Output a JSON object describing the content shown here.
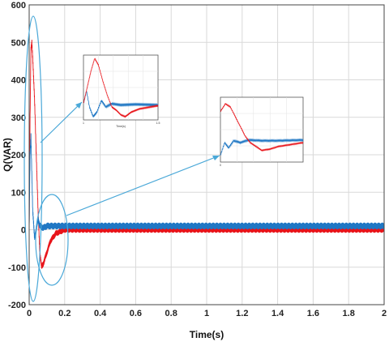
{
  "chart_data": {
    "type": "line",
    "title": "",
    "xlabel": "Time(s)",
    "ylabel": "Q(VAR)",
    "xlim": [
      0,
      2
    ],
    "ylim": [
      -200,
      600
    ],
    "x_ticks": [
      "0",
      "0.2",
      "0.4",
      "0.6",
      "0.8",
      "1",
      "1.2",
      "1.4",
      "1.6",
      "1.8",
      "2"
    ],
    "y_ticks": [
      "-200",
      "-100",
      "0",
      "100",
      "200",
      "300",
      "400",
      "500",
      "600"
    ],
    "grid": true,
    "legend": "none",
    "series": [
      {
        "color": "#e8141a",
        "x": [
          0,
          0.005,
          0.01,
          0.015,
          0.02,
          0.03,
          0.04,
          0.05,
          0.06,
          0.07,
          0.08,
          0.1,
          0.12,
          0.15,
          0.2,
          0.3,
          0.5,
          1.0,
          1.5,
          2.0
        ],
        "y": [
          0,
          300,
          480,
          500,
          460,
          350,
          200,
          50,
          -60,
          -100,
          -90,
          -60,
          -30,
          -10,
          0,
          0,
          0,
          0,
          0,
          0
        ],
        "ripple": 8
      },
      {
        "color": "#1f77c4",
        "x": [
          0,
          0.005,
          0.01,
          0.015,
          0.02,
          0.03,
          0.04,
          0.05,
          0.06,
          0.08,
          0.1,
          0.15,
          0.2,
          0.5,
          1.0,
          1.5,
          2.0
        ],
        "y": [
          0,
          200,
          250,
          150,
          50,
          -20,
          0,
          30,
          10,
          5,
          10,
          10,
          10,
          10,
          10,
          10,
          10
        ],
        "ripple": 9
      }
    ],
    "insets": [
      {
        "name": "zoom-startup",
        "x_ticks": [
          "1",
          "",
          "",
          "",
          "1.5"
        ],
        "xlabel": "Time(s)",
        "red": [
          [
            0,
            0.25
          ],
          [
            0.05,
            0.5
          ],
          [
            0.1,
            0.75
          ],
          [
            0.15,
            0.95
          ],
          [
            0.2,
            0.85
          ],
          [
            0.26,
            0.6
          ],
          [
            0.32,
            0.38
          ],
          [
            0.38,
            0.2
          ],
          [
            0.44,
            0.15
          ],
          [
            0.5,
            0.08
          ],
          [
            0.56,
            0.05
          ],
          [
            0.64,
            0.12
          ],
          [
            0.75,
            0.17
          ],
          [
            0.9,
            0.2
          ],
          [
            1.0,
            0.22
          ]
        ],
        "blue": [
          [
            0,
            0.25
          ],
          [
            0.04,
            0.45
          ],
          [
            0.08,
            0.2
          ],
          [
            0.13,
            0.05
          ],
          [
            0.18,
            0.12
          ],
          [
            0.24,
            0.3
          ],
          [
            0.3,
            0.2
          ],
          [
            0.38,
            0.25
          ],
          [
            0.5,
            0.23
          ],
          [
            0.7,
            0.24
          ],
          [
            1.0,
            0.23
          ]
        ]
      },
      {
        "name": "zoom-settling",
        "x_ticks": [
          "0",
          "",
          "",
          "",
          "",
          ""
        ],
        "xlabel": "",
        "red": [
          [
            0,
            0.78
          ],
          [
            0.06,
            0.9
          ],
          [
            0.12,
            0.85
          ],
          [
            0.18,
            0.7
          ],
          [
            0.24,
            0.55
          ],
          [
            0.3,
            0.4
          ],
          [
            0.36,
            0.3
          ],
          [
            0.42,
            0.25
          ],
          [
            0.5,
            0.18
          ],
          [
            0.6,
            0.2
          ],
          [
            0.7,
            0.24
          ],
          [
            0.85,
            0.27
          ],
          [
            1.0,
            0.3
          ]
        ],
        "blue": [
          [
            0,
            0.1
          ],
          [
            0.05,
            0.3
          ],
          [
            0.1,
            0.22
          ],
          [
            0.16,
            0.33
          ],
          [
            0.24,
            0.3
          ],
          [
            0.34,
            0.34
          ],
          [
            0.5,
            0.33
          ],
          [
            0.7,
            0.33
          ],
          [
            1.0,
            0.34
          ]
        ]
      }
    ]
  }
}
